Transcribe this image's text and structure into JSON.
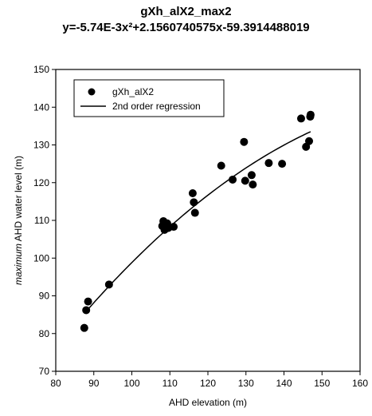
{
  "chart_data": {
    "type": "scatter",
    "title": "gXh_alX2_max2",
    "subtitle": "y=-5.74E-3x²+2.1560740575x-59.3914488019",
    "xlabel": "AHD elevation (m)",
    "ylabel_italic": "maximum",
    "ylabel_rest": " AHD water level (m)",
    "xlim": [
      80,
      160
    ],
    "ylim": [
      70,
      150
    ],
    "xticks": [
      80,
      90,
      100,
      110,
      120,
      130,
      140,
      150,
      160
    ],
    "yticks": [
      70,
      80,
      90,
      100,
      110,
      120,
      130,
      140,
      150
    ],
    "legend_position": "top-left",
    "series": [
      {
        "name": "gXh_alX2",
        "kind": "points",
        "x": [
          87.5,
          88.0,
          88.5,
          94.0,
          108.0,
          108.3,
          108.6,
          109.0,
          109.3,
          109.6,
          111.0,
          116.0,
          116.3,
          116.6,
          123.5,
          126.5,
          129.5,
          129.8,
          131.5,
          131.8,
          136.0,
          139.5,
          144.5,
          145.8,
          146.6,
          146.9,
          147.0
        ],
        "y": [
          81.5,
          86.2,
          88.5,
          93.0,
          108.5,
          109.8,
          107.5,
          108.8,
          109.2,
          108.0,
          108.3,
          117.2,
          114.8,
          112.0,
          124.5,
          120.8,
          130.8,
          120.5,
          122.0,
          119.5,
          125.2,
          125.0,
          137.0,
          129.5,
          131.0,
          137.5,
          138.0
        ]
      },
      {
        "name": "2nd order regression",
        "kind": "line",
        "coefficients": {
          "a": -0.00574,
          "b": 2.1560740575,
          "c": -59.3914488019
        },
        "x_range": [
          87.5,
          147.0
        ]
      }
    ]
  }
}
